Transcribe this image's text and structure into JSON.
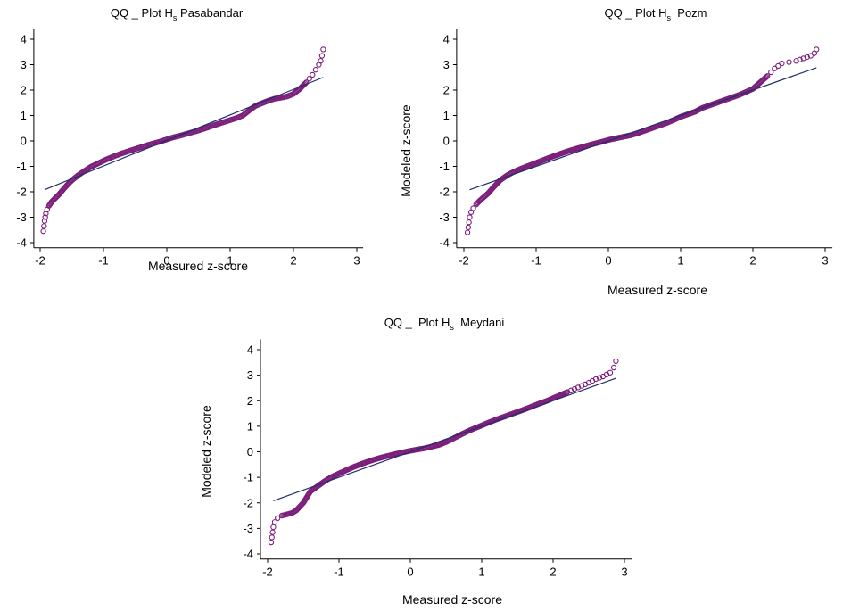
{
  "figure": {
    "point_color": "#7b1e7a",
    "fit_line_color": "#1f2f6b",
    "axis_color": "#000000"
  },
  "chart_data": [
    {
      "type": "scatter",
      "title_parts": [
        "QQ _ Plot H",
        "s",
        " Pasabandar"
      ],
      "xlabel": "Measured z-score",
      "ylabel": "",
      "xlim": [
        -2.1,
        3.1
      ],
      "ylim": [
        -4.2,
        4.4
      ],
      "xticks": [
        -2,
        -1,
        0,
        1,
        2,
        3
      ],
      "yticks": [
        -4,
        -3,
        -2,
        -1,
        0,
        1,
        2,
        3,
        4
      ],
      "grid": false,
      "fit_line": [
        [
          -1.93,
          -1.92
        ],
        [
          2.47,
          2.5
        ]
      ],
      "series": [
        {
          "x": [
            -1.95,
            -1.94,
            -1.93,
            -1.92,
            -1.91,
            -1.89,
            -1.86,
            -1.82,
            -1.78,
            -1.74,
            -1.7,
            -1.65,
            -1.58,
            -1.5,
            -1.4,
            -1.3,
            -1.2,
            -1.1,
            -1.0,
            -0.9,
            -0.8,
            -0.7,
            -0.6,
            -0.5,
            -0.4,
            -0.3,
            -0.2,
            -0.1,
            0.0,
            0.1,
            0.2,
            0.3,
            0.4,
            0.5,
            0.6,
            0.7,
            0.8,
            0.9,
            1.0,
            1.1,
            1.2,
            1.3,
            1.4,
            1.5,
            1.6,
            1.7,
            1.8,
            1.9,
            2.0,
            2.1,
            2.2,
            2.3,
            2.35,
            2.4,
            2.43,
            2.45,
            2.47
          ],
          "y": [
            -3.55,
            -3.35,
            -3.15,
            -3.0,
            -2.85,
            -2.7,
            -2.55,
            -2.4,
            -2.3,
            -2.2,
            -2.1,
            -1.95,
            -1.75,
            -1.55,
            -1.35,
            -1.18,
            -1.02,
            -0.9,
            -0.78,
            -0.67,
            -0.57,
            -0.48,
            -0.4,
            -0.32,
            -0.24,
            -0.16,
            -0.09,
            -0.02,
            0.06,
            0.14,
            0.2,
            0.27,
            0.34,
            0.41,
            0.49,
            0.58,
            0.66,
            0.74,
            0.82,
            0.9,
            1.0,
            1.2,
            1.38,
            1.48,
            1.58,
            1.66,
            1.7,
            1.75,
            1.85,
            2.05,
            2.3,
            2.6,
            2.8,
            3.0,
            3.15,
            3.35,
            3.6
          ]
        }
      ]
    },
    {
      "type": "scatter",
      "title_parts": [
        "QQ _ Plot H",
        "s",
        "  Pozm"
      ],
      "xlabel": "Measured z-score",
      "ylabel": "Modeled z-score",
      "xlim": [
        -2.1,
        3.1
      ],
      "ylim": [
        -4.2,
        4.4
      ],
      "xticks": [
        -2,
        -1,
        0,
        1,
        2,
        3
      ],
      "yticks": [
        -4,
        -3,
        -2,
        -1,
        0,
        1,
        2,
        3,
        4
      ],
      "grid": false,
      "fit_line": [
        [
          -1.92,
          -1.92
        ],
        [
          2.88,
          2.88
        ]
      ],
      "series": [
        {
          "x": [
            -1.95,
            -1.94,
            -1.93,
            -1.92,
            -1.9,
            -1.87,
            -1.83,
            -1.78,
            -1.72,
            -1.66,
            -1.6,
            -1.5,
            -1.4,
            -1.3,
            -1.2,
            -1.1,
            -1.0,
            -0.9,
            -0.8,
            -0.7,
            -0.6,
            -0.5,
            -0.4,
            -0.3,
            -0.2,
            -0.1,
            0.0,
            0.1,
            0.2,
            0.3,
            0.4,
            0.5,
            0.6,
            0.7,
            0.8,
            0.9,
            1.0,
            1.1,
            1.2,
            1.3,
            1.4,
            1.5,
            1.6,
            1.7,
            1.8,
            1.9,
            2.0,
            2.1,
            2.2,
            2.25,
            2.3,
            2.35,
            2.4,
            2.5,
            2.6,
            2.7,
            2.8,
            2.85,
            2.88
          ],
          "y": [
            -3.6,
            -3.4,
            -3.2,
            -3.0,
            -2.8,
            -2.65,
            -2.5,
            -2.35,
            -2.2,
            -2.05,
            -1.85,
            -1.55,
            -1.35,
            -1.2,
            -1.08,
            -0.97,
            -0.86,
            -0.75,
            -0.64,
            -0.54,
            -0.44,
            -0.35,
            -0.27,
            -0.19,
            -0.11,
            -0.04,
            0.04,
            0.1,
            0.16,
            0.22,
            0.3,
            0.4,
            0.5,
            0.6,
            0.7,
            0.82,
            0.95,
            1.05,
            1.15,
            1.3,
            1.4,
            1.5,
            1.6,
            1.7,
            1.8,
            1.92,
            2.05,
            2.3,
            2.55,
            2.7,
            2.85,
            2.95,
            3.05,
            3.1,
            3.15,
            3.25,
            3.35,
            3.45,
            3.6
          ]
        }
      ]
    },
    {
      "type": "scatter",
      "title_parts": [
        "QQ _  Plot H",
        "s",
        "  Meydani"
      ],
      "xlabel": "Measured z-score",
      "ylabel": "Modeled z-score",
      "xlim": [
        -2.1,
        3.1
      ],
      "ylim": [
        -4.2,
        4.4
      ],
      "xticks": [
        -2,
        -1,
        0,
        1,
        2,
        3
      ],
      "yticks": [
        -4,
        -3,
        -2,
        -1,
        0,
        1,
        2,
        3,
        4
      ],
      "grid": false,
      "fit_line": [
        [
          -1.92,
          -1.92
        ],
        [
          2.88,
          2.88
        ]
      ],
      "series": [
        {
          "x": [
            -1.95,
            -1.94,
            -1.93,
            -1.92,
            -1.9,
            -1.86,
            -1.8,
            -1.73,
            -1.66,
            -1.6,
            -1.5,
            -1.4,
            -1.3,
            -1.2,
            -1.1,
            -1.0,
            -0.9,
            -0.8,
            -0.7,
            -0.6,
            -0.5,
            -0.4,
            -0.3,
            -0.2,
            -0.1,
            0.0,
            0.1,
            0.2,
            0.3,
            0.4,
            0.5,
            0.6,
            0.7,
            0.8,
            0.9,
            1.0,
            1.1,
            1.2,
            1.3,
            1.4,
            1.5,
            1.6,
            1.7,
            1.8,
            1.9,
            2.0,
            2.1,
            2.2,
            2.3,
            2.4,
            2.5,
            2.6,
            2.7,
            2.8,
            2.85,
            2.88
          ],
          "y": [
            -3.55,
            -3.35,
            -3.15,
            -2.95,
            -2.75,
            -2.6,
            -2.5,
            -2.45,
            -2.4,
            -2.3,
            -2.0,
            -1.55,
            -1.35,
            -1.15,
            -0.98,
            -0.85,
            -0.72,
            -0.6,
            -0.49,
            -0.39,
            -0.3,
            -0.22,
            -0.15,
            -0.08,
            -0.02,
            0.04,
            0.09,
            0.14,
            0.2,
            0.27,
            0.38,
            0.52,
            0.66,
            0.8,
            0.92,
            1.03,
            1.15,
            1.26,
            1.36,
            1.46,
            1.56,
            1.66,
            1.77,
            1.88,
            1.98,
            2.1,
            2.22,
            2.34,
            2.46,
            2.58,
            2.7,
            2.85,
            2.95,
            3.1,
            3.3,
            3.55
          ]
        }
      ]
    }
  ]
}
